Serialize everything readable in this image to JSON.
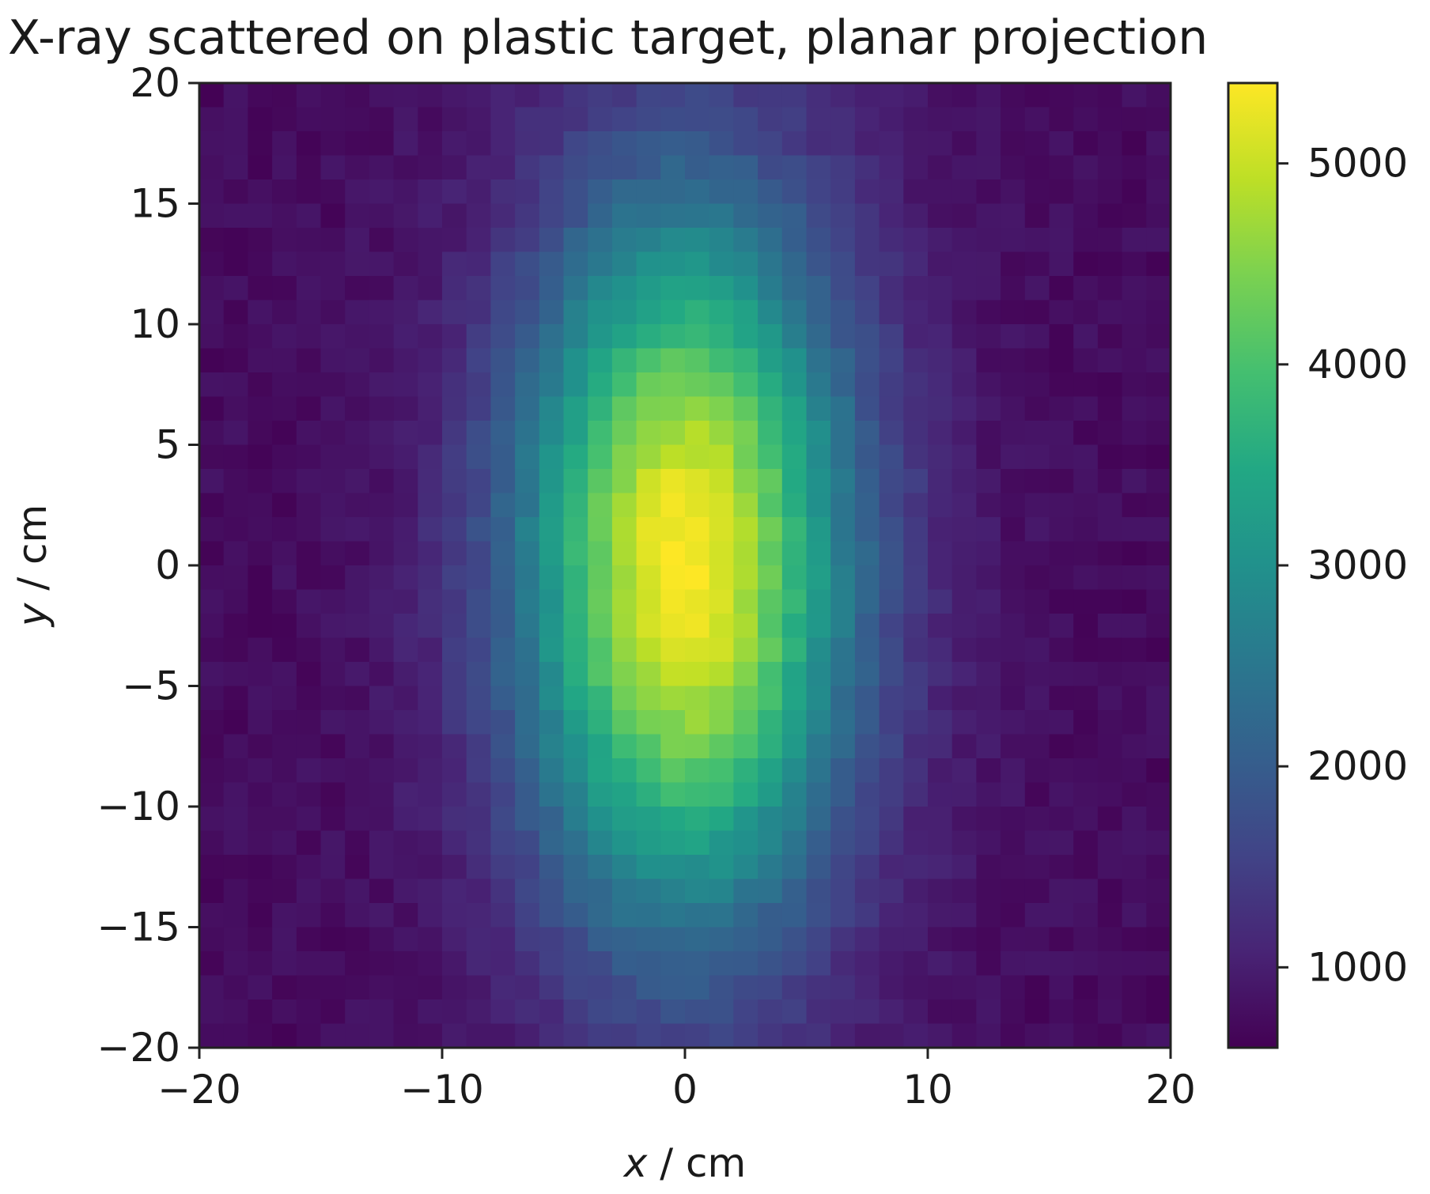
{
  "chart_data": {
    "type": "heatmap",
    "title": "X-ray scattered on plastic target, planar projection",
    "xlabel_var": "x",
    "xlabel_unit": " / cm",
    "ylabel_var": "y",
    "ylabel_unit": " / cm",
    "xlim": [
      -20,
      20
    ],
    "ylim": [
      -20,
      20
    ],
    "x_ticks": [
      -20,
      -10,
      0,
      10,
      20
    ],
    "y_ticks": [
      -20,
      -15,
      -10,
      -5,
      0,
      5,
      10,
      15,
      20
    ],
    "x_tick_labels": [
      "−20",
      "−10",
      "0",
      "10",
      "20"
    ],
    "y_tick_labels": [
      "−20",
      "−15",
      "−10",
      "−5",
      "0",
      "5",
      "10",
      "15",
      "20"
    ],
    "colormap": "viridis",
    "colorbar": {
      "vmin": 600,
      "vmax": 5400,
      "ticks": [
        1000,
        2000,
        3000,
        4000,
        5000
      ],
      "tick_labels": [
        "1000",
        "2000",
        "3000",
        "4000",
        "5000"
      ]
    },
    "grid": false,
    "bins": [
      40,
      40
    ],
    "distribution": {
      "shape": "gaussian",
      "center": [
        0,
        0
      ],
      "sigma_x_cm": 4.8,
      "sigma_y_cm": 10.5,
      "peak_value": 5400,
      "background_value": 750
    }
  }
}
